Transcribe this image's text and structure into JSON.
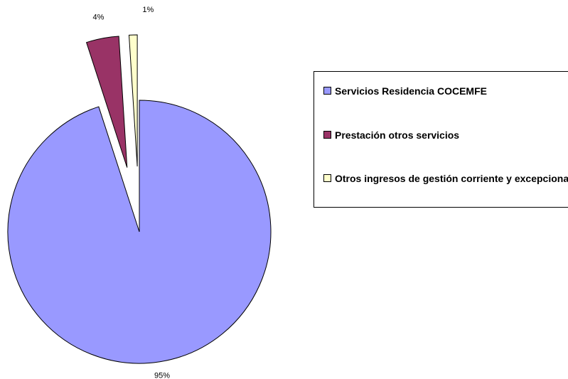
{
  "chart_data": {
    "type": "pie",
    "categories": [
      "Servicios Residencia COCEMFE",
      "Prestación otros servicios",
      "Otros ingresos de gestión corriente y excepcionales"
    ],
    "values": [
      95,
      4,
      1
    ],
    "value_labels": [
      "95%",
      "4%",
      "1%"
    ],
    "colors": [
      "#9999ff",
      "#993366",
      "#ffffcc"
    ],
    "legend": "right"
  }
}
